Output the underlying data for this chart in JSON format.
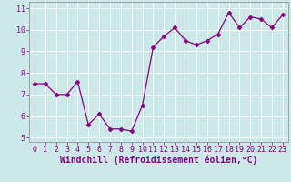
{
  "x": [
    0,
    1,
    2,
    3,
    4,
    5,
    6,
    7,
    8,
    9,
    10,
    11,
    12,
    13,
    14,
    15,
    16,
    17,
    18,
    19,
    20,
    21,
    22,
    23
  ],
  "y": [
    7.5,
    7.5,
    7.0,
    7.0,
    7.6,
    5.6,
    6.1,
    5.4,
    5.4,
    5.3,
    6.5,
    9.2,
    9.7,
    10.1,
    9.5,
    9.3,
    9.5,
    9.8,
    10.8,
    10.1,
    10.6,
    10.5,
    10.1,
    10.7
  ],
  "line_color": "#880088",
  "marker": "D",
  "marker_size": 2.5,
  "bg_color": "#cce8e8",
  "grid_color": "#b0d8d8",
  "xlabel": "Windchill (Refroidissement éolien,°C)",
  "xlim": [
    -0.5,
    23.5
  ],
  "ylim": [
    4.8,
    11.3
  ],
  "yticks": [
    5,
    6,
    7,
    8,
    9,
    10,
    11
  ],
  "xticks": [
    0,
    1,
    2,
    3,
    4,
    5,
    6,
    7,
    8,
    9,
    10,
    11,
    12,
    13,
    14,
    15,
    16,
    17,
    18,
    19,
    20,
    21,
    22,
    23
  ],
  "tick_font_size": 6,
  "xlabel_font_size": 7,
  "linewidth": 0.9
}
